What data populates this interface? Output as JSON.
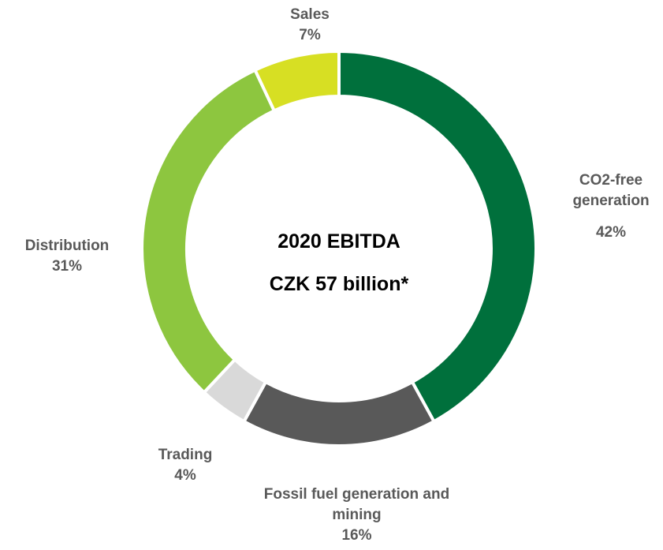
{
  "chart_data": {
    "type": "donut",
    "title": "2020 EBITDA",
    "subtitle": "CZK 57 billion*",
    "categories": [
      "CO2-free generation",
      "Fossil fuel generation and mining",
      "Trading",
      "Distribution",
      "Sales"
    ],
    "values": [
      42,
      16,
      4,
      31,
      7
    ],
    "value_labels": [
      "42%",
      "16%",
      "4%",
      "31%",
      "7%"
    ],
    "colors": [
      "#00703c",
      "#595959",
      "#d9d9d9",
      "#8dc63f",
      "#d7df23"
    ]
  }
}
